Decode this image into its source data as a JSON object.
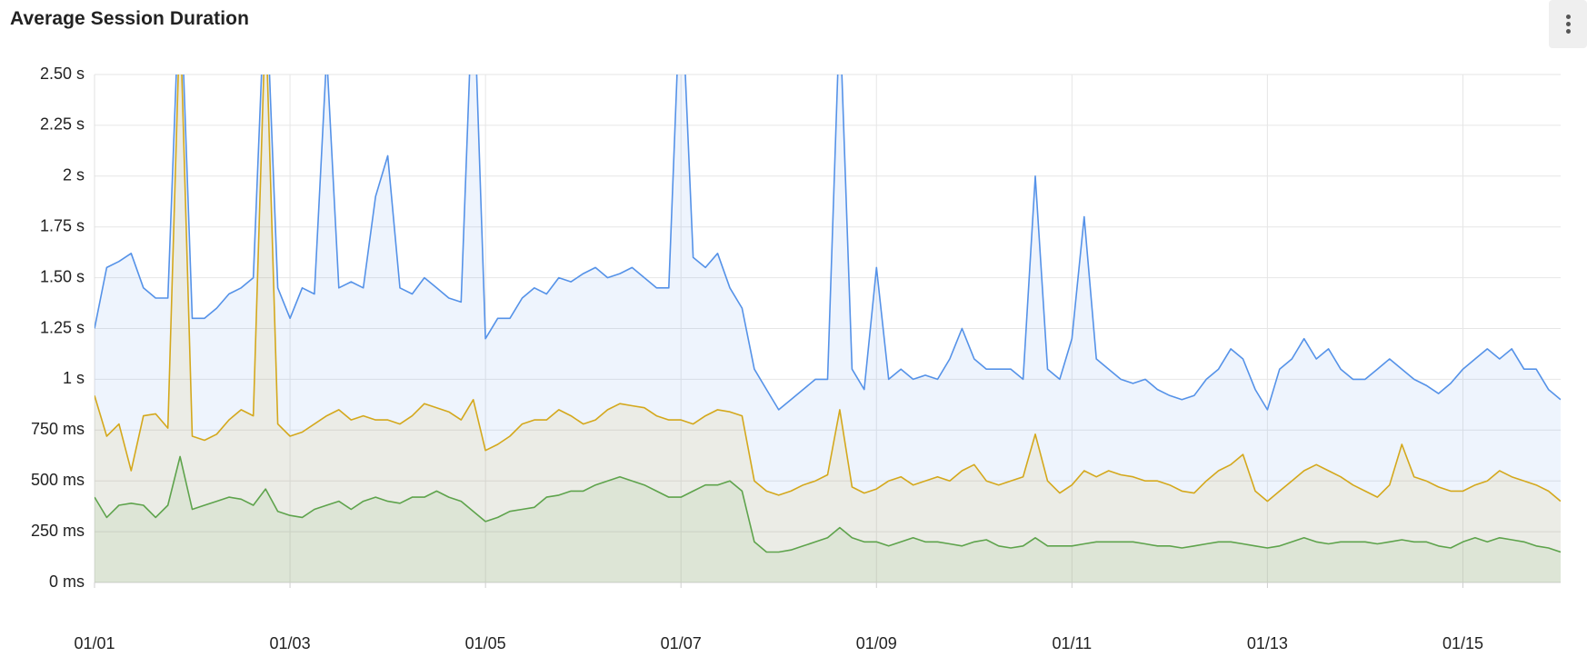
{
  "header": {
    "title": "Average Session Duration",
    "menu_icon": "more-vertical-icon"
  },
  "chart_data": {
    "type": "area",
    "title": "Average Session Duration",
    "xlabel": "",
    "ylabel": "",
    "ylim": [
      0,
      2.5
    ],
    "y_unit": "s",
    "y_ticks": [
      {
        "value": 0,
        "label": "0 ms"
      },
      {
        "value": 0.25,
        "label": "250 ms"
      },
      {
        "value": 0.5,
        "label": "500 ms"
      },
      {
        "value": 0.75,
        "label": "750 ms"
      },
      {
        "value": 1.0,
        "label": "1 s"
      },
      {
        "value": 1.25,
        "label": "1.25 s"
      },
      {
        "value": 1.5,
        "label": "1.50 s"
      },
      {
        "value": 1.75,
        "label": "1.75 s"
      },
      {
        "value": 2.0,
        "label": "2 s"
      },
      {
        "value": 2.25,
        "label": "2.25 s"
      },
      {
        "value": 2.5,
        "label": "2.50 s"
      }
    ],
    "x_range": [
      "01/01 00:00",
      "01/16 00:00"
    ],
    "x_ticks": [
      "01/01",
      "01/03",
      "01/05",
      "01/07",
      "01/09",
      "01/11",
      "01/13",
      "01/15"
    ],
    "grid": true,
    "legend": "none",
    "x": [
      "01/01 00:00",
      "01/01 03:00",
      "01/01 06:00",
      "01/01 09:00",
      "01/01 12:00",
      "01/01 15:00",
      "01/01 18:00",
      "01/01 21:00",
      "01/02 00:00",
      "01/02 03:00",
      "01/02 06:00",
      "01/02 09:00",
      "01/02 12:00",
      "01/02 15:00",
      "01/02 18:00",
      "01/02 21:00",
      "01/03 00:00",
      "01/03 03:00",
      "01/03 06:00",
      "01/03 09:00",
      "01/03 12:00",
      "01/03 15:00",
      "01/03 18:00",
      "01/03 21:00",
      "01/04 00:00",
      "01/04 03:00",
      "01/04 06:00",
      "01/04 09:00",
      "01/04 12:00",
      "01/04 15:00",
      "01/04 18:00",
      "01/04 21:00",
      "01/05 00:00",
      "01/05 03:00",
      "01/05 06:00",
      "01/05 09:00",
      "01/05 12:00",
      "01/05 15:00",
      "01/05 18:00",
      "01/05 21:00",
      "01/06 00:00",
      "01/06 03:00",
      "01/06 06:00",
      "01/06 09:00",
      "01/06 12:00",
      "01/06 15:00",
      "01/06 18:00",
      "01/06 21:00",
      "01/07 00:00",
      "01/07 03:00",
      "01/07 06:00",
      "01/07 09:00",
      "01/07 12:00",
      "01/07 15:00",
      "01/07 18:00",
      "01/07 21:00",
      "01/08 00:00",
      "01/08 03:00",
      "01/08 06:00",
      "01/08 09:00",
      "01/08 12:00",
      "01/08 15:00",
      "01/08 18:00",
      "01/08 21:00",
      "01/09 00:00",
      "01/09 03:00",
      "01/09 06:00",
      "01/09 09:00",
      "01/09 12:00",
      "01/09 15:00",
      "01/09 18:00",
      "01/09 21:00",
      "01/10 00:00",
      "01/10 03:00",
      "01/10 06:00",
      "01/10 09:00",
      "01/10 12:00",
      "01/10 15:00",
      "01/10 18:00",
      "01/10 21:00",
      "01/11 00:00",
      "01/11 03:00",
      "01/11 06:00",
      "01/11 09:00",
      "01/11 12:00",
      "01/11 15:00",
      "01/11 18:00",
      "01/11 21:00",
      "01/12 00:00",
      "01/12 03:00",
      "01/12 06:00",
      "01/12 09:00",
      "01/12 12:00",
      "01/12 15:00",
      "01/12 18:00",
      "01/12 21:00",
      "01/13 00:00",
      "01/13 03:00",
      "01/13 06:00",
      "01/13 09:00",
      "01/13 12:00",
      "01/13 15:00",
      "01/13 18:00",
      "01/13 21:00",
      "01/14 00:00",
      "01/14 03:00",
      "01/14 06:00",
      "01/14 09:00",
      "01/14 12:00",
      "01/14 15:00",
      "01/14 18:00",
      "01/14 21:00",
      "01/15 00:00",
      "01/15 03:00",
      "01/15 06:00",
      "01/15 09:00",
      "01/15 12:00",
      "01/15 15:00",
      "01/15 18:00",
      "01/15 21:00",
      "01/16 00:00"
    ],
    "series": [
      {
        "color": "#5592e8",
        "fill": "#eef3fc",
        "values": [
          1.25,
          1.55,
          1.58,
          1.62,
          1.45,
          1.4,
          1.4,
          3.0,
          1.3,
          1.3,
          1.35,
          1.42,
          1.45,
          1.5,
          3.0,
          1.45,
          1.3,
          1.45,
          1.42,
          2.6,
          1.45,
          1.48,
          1.45,
          1.9,
          2.1,
          1.45,
          1.42,
          1.5,
          1.45,
          1.4,
          1.38,
          3.0,
          1.2,
          1.3,
          1.3,
          1.4,
          1.45,
          1.42,
          1.5,
          1.48,
          1.52,
          1.55,
          1.5,
          1.52,
          1.55,
          1.5,
          1.45,
          1.45,
          3.0,
          1.6,
          1.55,
          1.62,
          1.45,
          1.35,
          1.05,
          0.95,
          0.85,
          0.9,
          0.95,
          1.0,
          1.0,
          2.8,
          1.05,
          0.95,
          1.55,
          1.0,
          1.05,
          1.0,
          1.02,
          1.0,
          1.1,
          1.25,
          1.1,
          1.05,
          1.05,
          1.05,
          1.0,
          2.0,
          1.05,
          1.0,
          1.2,
          1.8,
          1.1,
          1.05,
          1.0,
          0.98,
          1.0,
          0.95,
          0.92,
          0.9,
          0.92,
          1.0,
          1.05,
          1.15,
          1.1,
          0.95,
          0.85,
          1.05,
          1.1,
          1.2,
          1.1,
          1.15,
          1.05,
          1.0,
          1.0,
          1.05,
          1.1,
          1.05,
          1.0,
          0.97,
          0.93,
          0.98,
          1.05,
          1.1,
          1.15,
          1.1,
          1.15,
          1.05,
          1.05,
          0.95,
          0.9
        ]
      },
      {
        "color": "#d4a81c",
        "fill": "#efeee4",
        "values": [
          0.92,
          0.72,
          0.78,
          0.55,
          0.82,
          0.83,
          0.76,
          2.8,
          0.72,
          0.7,
          0.73,
          0.8,
          0.85,
          0.82,
          2.8,
          0.78,
          0.72,
          0.74,
          0.78,
          0.82,
          0.85,
          0.8,
          0.82,
          0.8,
          0.8,
          0.78,
          0.82,
          0.88,
          0.86,
          0.84,
          0.8,
          0.9,
          0.65,
          0.68,
          0.72,
          0.78,
          0.8,
          0.8,
          0.85,
          0.82,
          0.78,
          0.8,
          0.85,
          0.88,
          0.87,
          0.86,
          0.82,
          0.8,
          0.8,
          0.78,
          0.82,
          0.85,
          0.84,
          0.82,
          0.5,
          0.45,
          0.43,
          0.45,
          0.48,
          0.5,
          0.53,
          0.85,
          0.47,
          0.44,
          0.46,
          0.5,
          0.52,
          0.48,
          0.5,
          0.52,
          0.5,
          0.55,
          0.58,
          0.5,
          0.48,
          0.5,
          0.52,
          0.73,
          0.5,
          0.44,
          0.48,
          0.55,
          0.52,
          0.55,
          0.53,
          0.52,
          0.5,
          0.5,
          0.48,
          0.45,
          0.44,
          0.5,
          0.55,
          0.58,
          0.63,
          0.45,
          0.4,
          0.45,
          0.5,
          0.55,
          0.58,
          0.55,
          0.52,
          0.48,
          0.45,
          0.42,
          0.48,
          0.68,
          0.52,
          0.5,
          0.47,
          0.45,
          0.45,
          0.48,
          0.5,
          0.55,
          0.52,
          0.5,
          0.48,
          0.45,
          0.4
        ]
      },
      {
        "color": "#5ea34c",
        "fill": "#dfe8d8",
        "values": [
          0.42,
          0.32,
          0.38,
          0.39,
          0.38,
          0.32,
          0.38,
          0.62,
          0.36,
          0.38,
          0.4,
          0.42,
          0.41,
          0.38,
          0.46,
          0.35,
          0.33,
          0.32,
          0.36,
          0.38,
          0.4,
          0.36,
          0.4,
          0.42,
          0.4,
          0.39,
          0.42,
          0.42,
          0.45,
          0.42,
          0.4,
          0.35,
          0.3,
          0.32,
          0.35,
          0.36,
          0.37,
          0.42,
          0.43,
          0.45,
          0.45,
          0.48,
          0.5,
          0.52,
          0.5,
          0.48,
          0.45,
          0.42,
          0.42,
          0.45,
          0.48,
          0.48,
          0.5,
          0.45,
          0.2,
          0.15,
          0.15,
          0.16,
          0.18,
          0.2,
          0.22,
          0.27,
          0.22,
          0.2,
          0.2,
          0.18,
          0.2,
          0.22,
          0.2,
          0.2,
          0.19,
          0.18,
          0.2,
          0.21,
          0.18,
          0.17,
          0.18,
          0.22,
          0.18,
          0.18,
          0.18,
          0.19,
          0.2,
          0.2,
          0.2,
          0.2,
          0.19,
          0.18,
          0.18,
          0.17,
          0.18,
          0.19,
          0.2,
          0.2,
          0.19,
          0.18,
          0.17,
          0.18,
          0.2,
          0.22,
          0.2,
          0.19,
          0.2,
          0.2,
          0.2,
          0.19,
          0.2,
          0.21,
          0.2,
          0.2,
          0.18,
          0.17,
          0.2,
          0.22,
          0.2,
          0.22,
          0.21,
          0.2,
          0.18,
          0.17,
          0.15
        ]
      }
    ]
  }
}
